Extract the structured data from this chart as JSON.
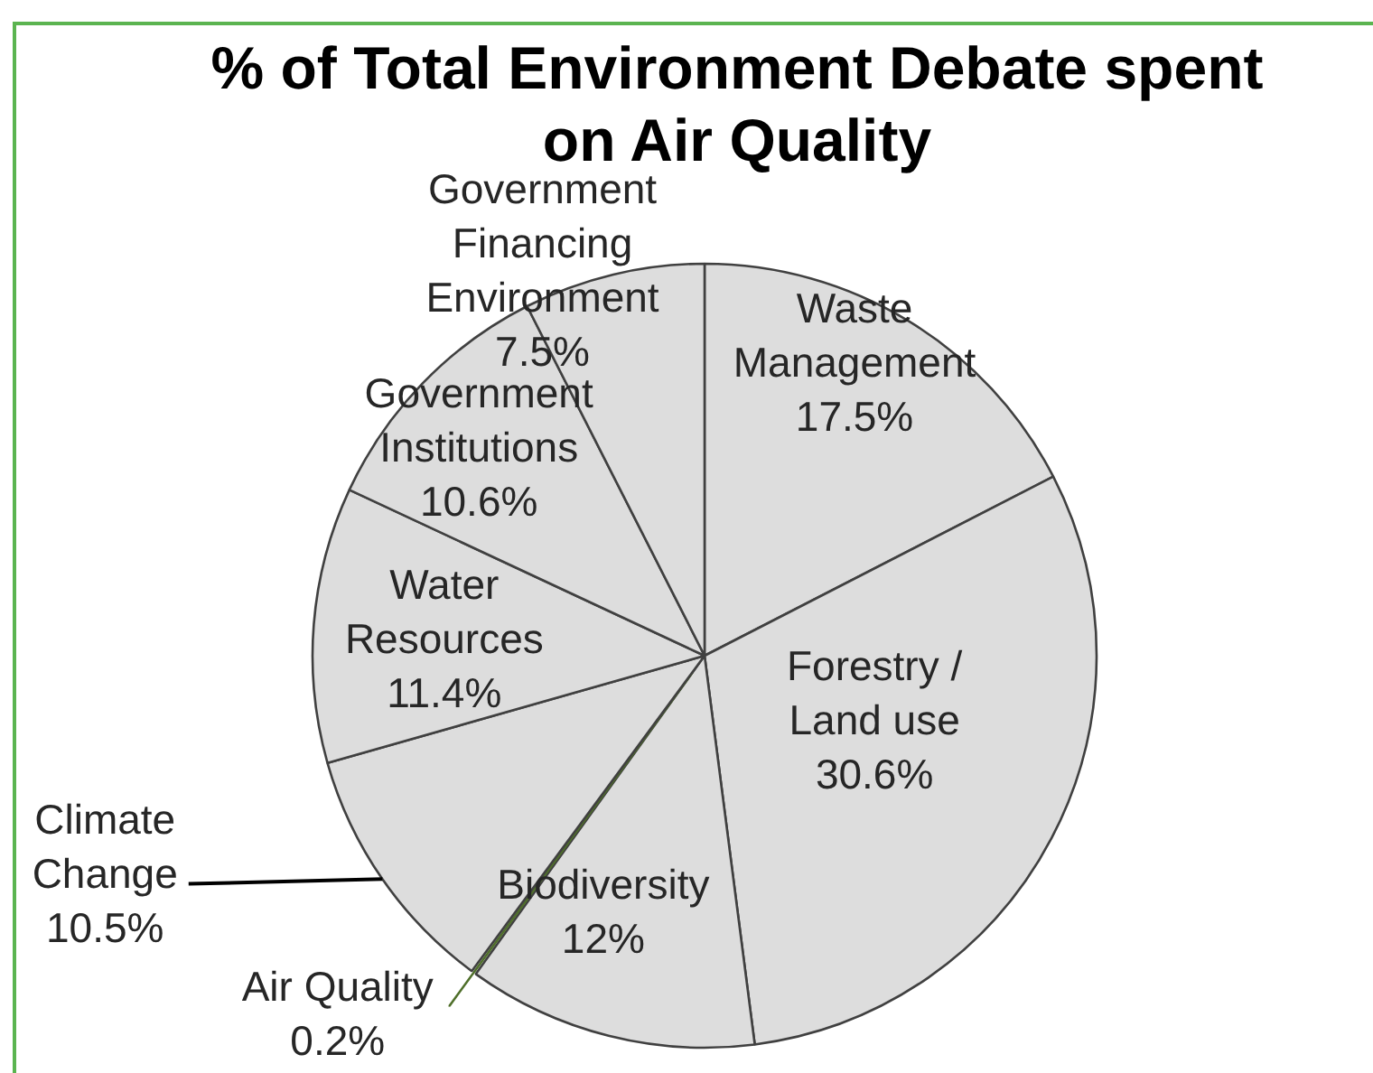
{
  "chart_data": {
    "type": "pie",
    "title": "% of Total Environment Debate spent on Air Quality",
    "categories": [
      "Waste Management",
      "Forestry / Land use",
      "Biodiversity",
      "Air Quality",
      "Climate Change",
      "Water Resources",
      "Government Institutions",
      "Government Financing Environment"
    ],
    "values": [
      17.5,
      30.6,
      12,
      0.2,
      10.5,
      11.4,
      10.6,
      7.5
    ],
    "value_labels": [
      "17.5%",
      "30.6%",
      "12%",
      "0.2%",
      "10.5%",
      "11.4%",
      "10.6%",
      "7.5%"
    ],
    "colors": [
      "#dddddd",
      "#dddddd",
      "#dddddd",
      "#4f6f2a",
      "#dddddd",
      "#dddddd",
      "#dddddd",
      "#dddddd"
    ]
  }
}
